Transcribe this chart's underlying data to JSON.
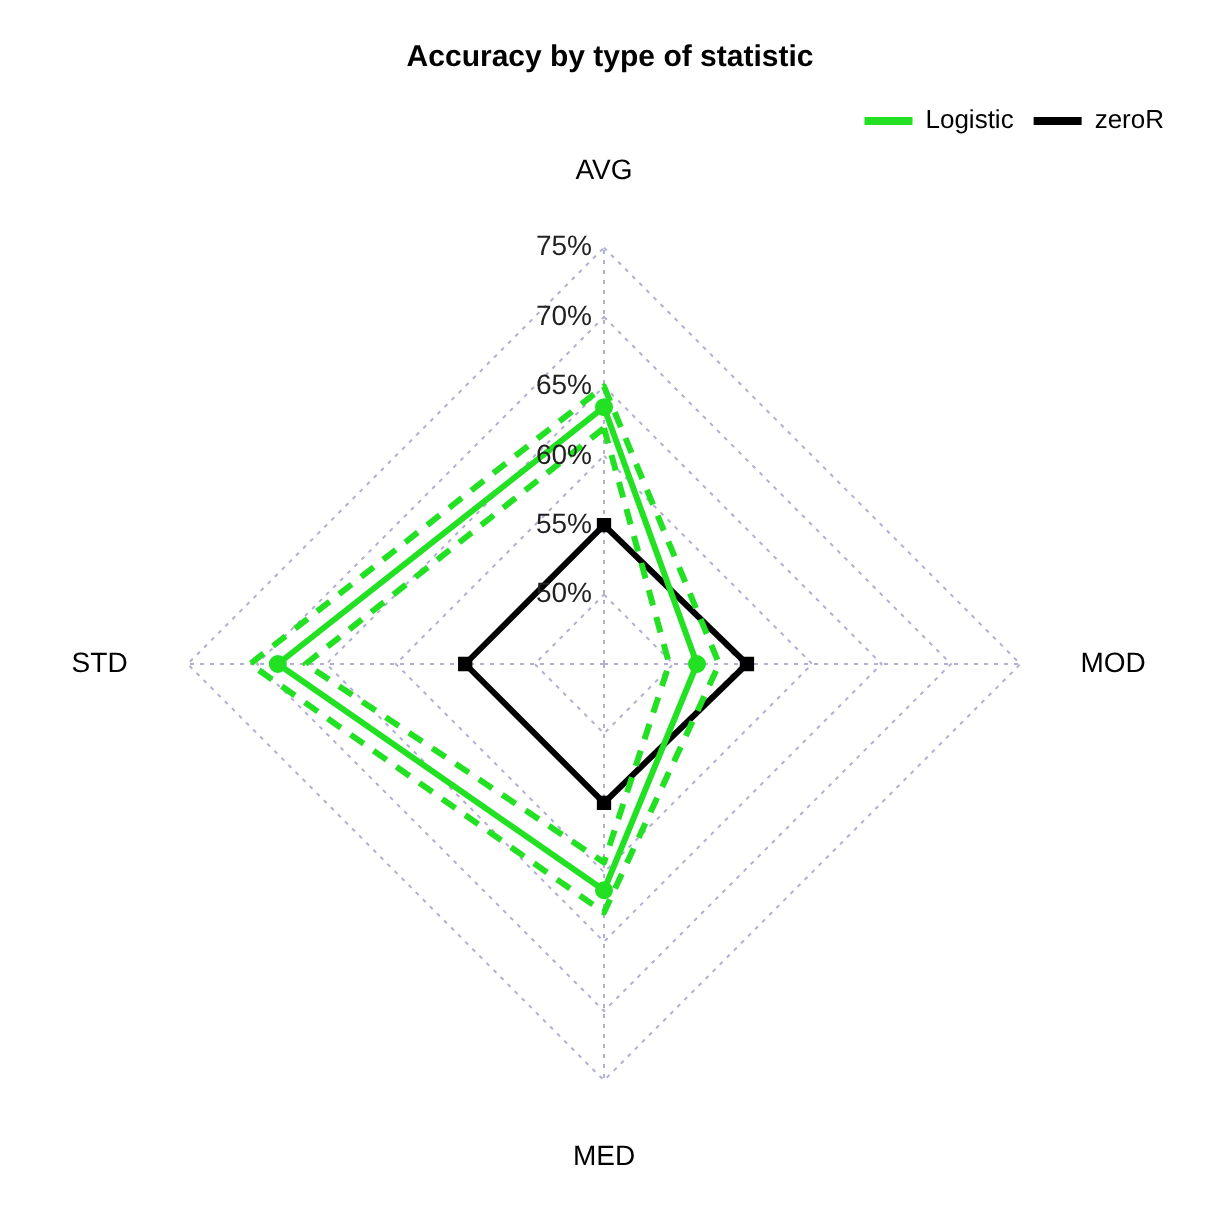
{
  "chart_data": {
    "type": "radar",
    "title": "Accuracy by type of statistic",
    "categories": [
      "AVG",
      "MOD",
      "MED",
      "STD"
    ],
    "series": [
      {
        "name": "Logistic",
        "color": "#22e022",
        "marker": "circle",
        "line_style": "solid",
        "values": [
          63.5,
          51.7,
          61.3,
          68.5
        ]
      },
      {
        "color": "#22e022",
        "marker": "none",
        "line_style": "dashed",
        "values": [
          62,
          49.7,
          59.3,
          66.5
        ]
      },
      {
        "color": "#22e022",
        "marker": "none",
        "line_style": "dashed",
        "values": [
          65,
          53.3,
          62.9,
          70.5
        ]
      },
      {
        "name": "zeroR",
        "color": "#000000",
        "marker": "square",
        "line_style": "solid",
        "values": [
          55,
          55.3,
          55,
          55
        ]
      }
    ],
    "ylim": [
      45,
      75
    ],
    "yticks": [
      {
        "value": 50,
        "label": "50%"
      },
      {
        "value": 55,
        "label": "55%"
      },
      {
        "value": 60,
        "label": "60%"
      },
      {
        "value": 65,
        "label": "65%"
      },
      {
        "value": 70,
        "label": "70%"
      },
      {
        "value": 75,
        "label": "75%"
      }
    ],
    "grid": true,
    "legend": "top right"
  }
}
